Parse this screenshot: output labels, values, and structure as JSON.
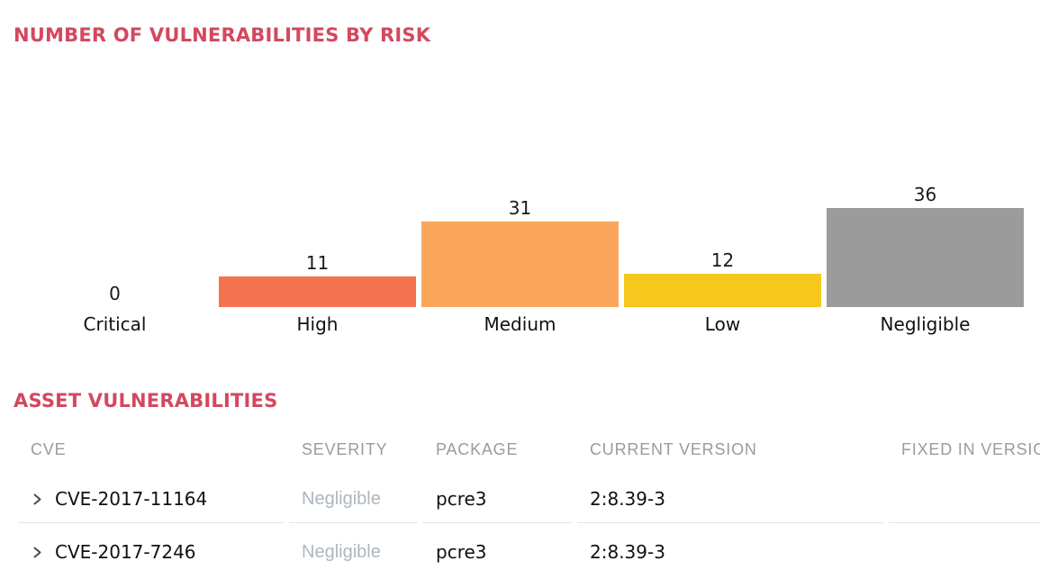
{
  "accent_color": "#d3485e",
  "chart_section": {
    "title": "NUMBER OF VULNERABILITIES BY RISK"
  },
  "chart_data": {
    "type": "bar",
    "title": "NUMBER OF VULNERABILITIES BY RISK",
    "categories": [
      "Critical",
      "High",
      "Medium",
      "Low",
      "Negligible"
    ],
    "values": [
      0,
      11,
      31,
      12,
      36
    ],
    "bar_colors": [
      null,
      "#f4734f",
      "#faa65b",
      "#f6c71d",
      "#9b9b9b"
    ],
    "xlabel": "",
    "ylabel": "",
    "ylim": [
      0,
      36
    ],
    "grid": false,
    "axes_visible": false,
    "value_labels_position": "above-bars",
    "legend": "none"
  },
  "table_section": {
    "title": "ASSET VULNERABILITIES",
    "columns": [
      "CVE",
      "SEVERITY",
      "PACKAGE",
      "CURRENT VERSION",
      "FIXED IN VERSION"
    ],
    "rows": [
      {
        "cve": "CVE-2017-11164",
        "severity": "Negligible",
        "package": "pcre3",
        "current_version": "2:8.39-3",
        "fixed_in_version": ""
      },
      {
        "cve": "CVE-2017-7246",
        "severity": "Negligible",
        "package": "pcre3",
        "current_version": "2:8.39-3",
        "fixed_in_version": ""
      }
    ]
  },
  "icons": {
    "row_expand": "chevron-right-icon"
  }
}
